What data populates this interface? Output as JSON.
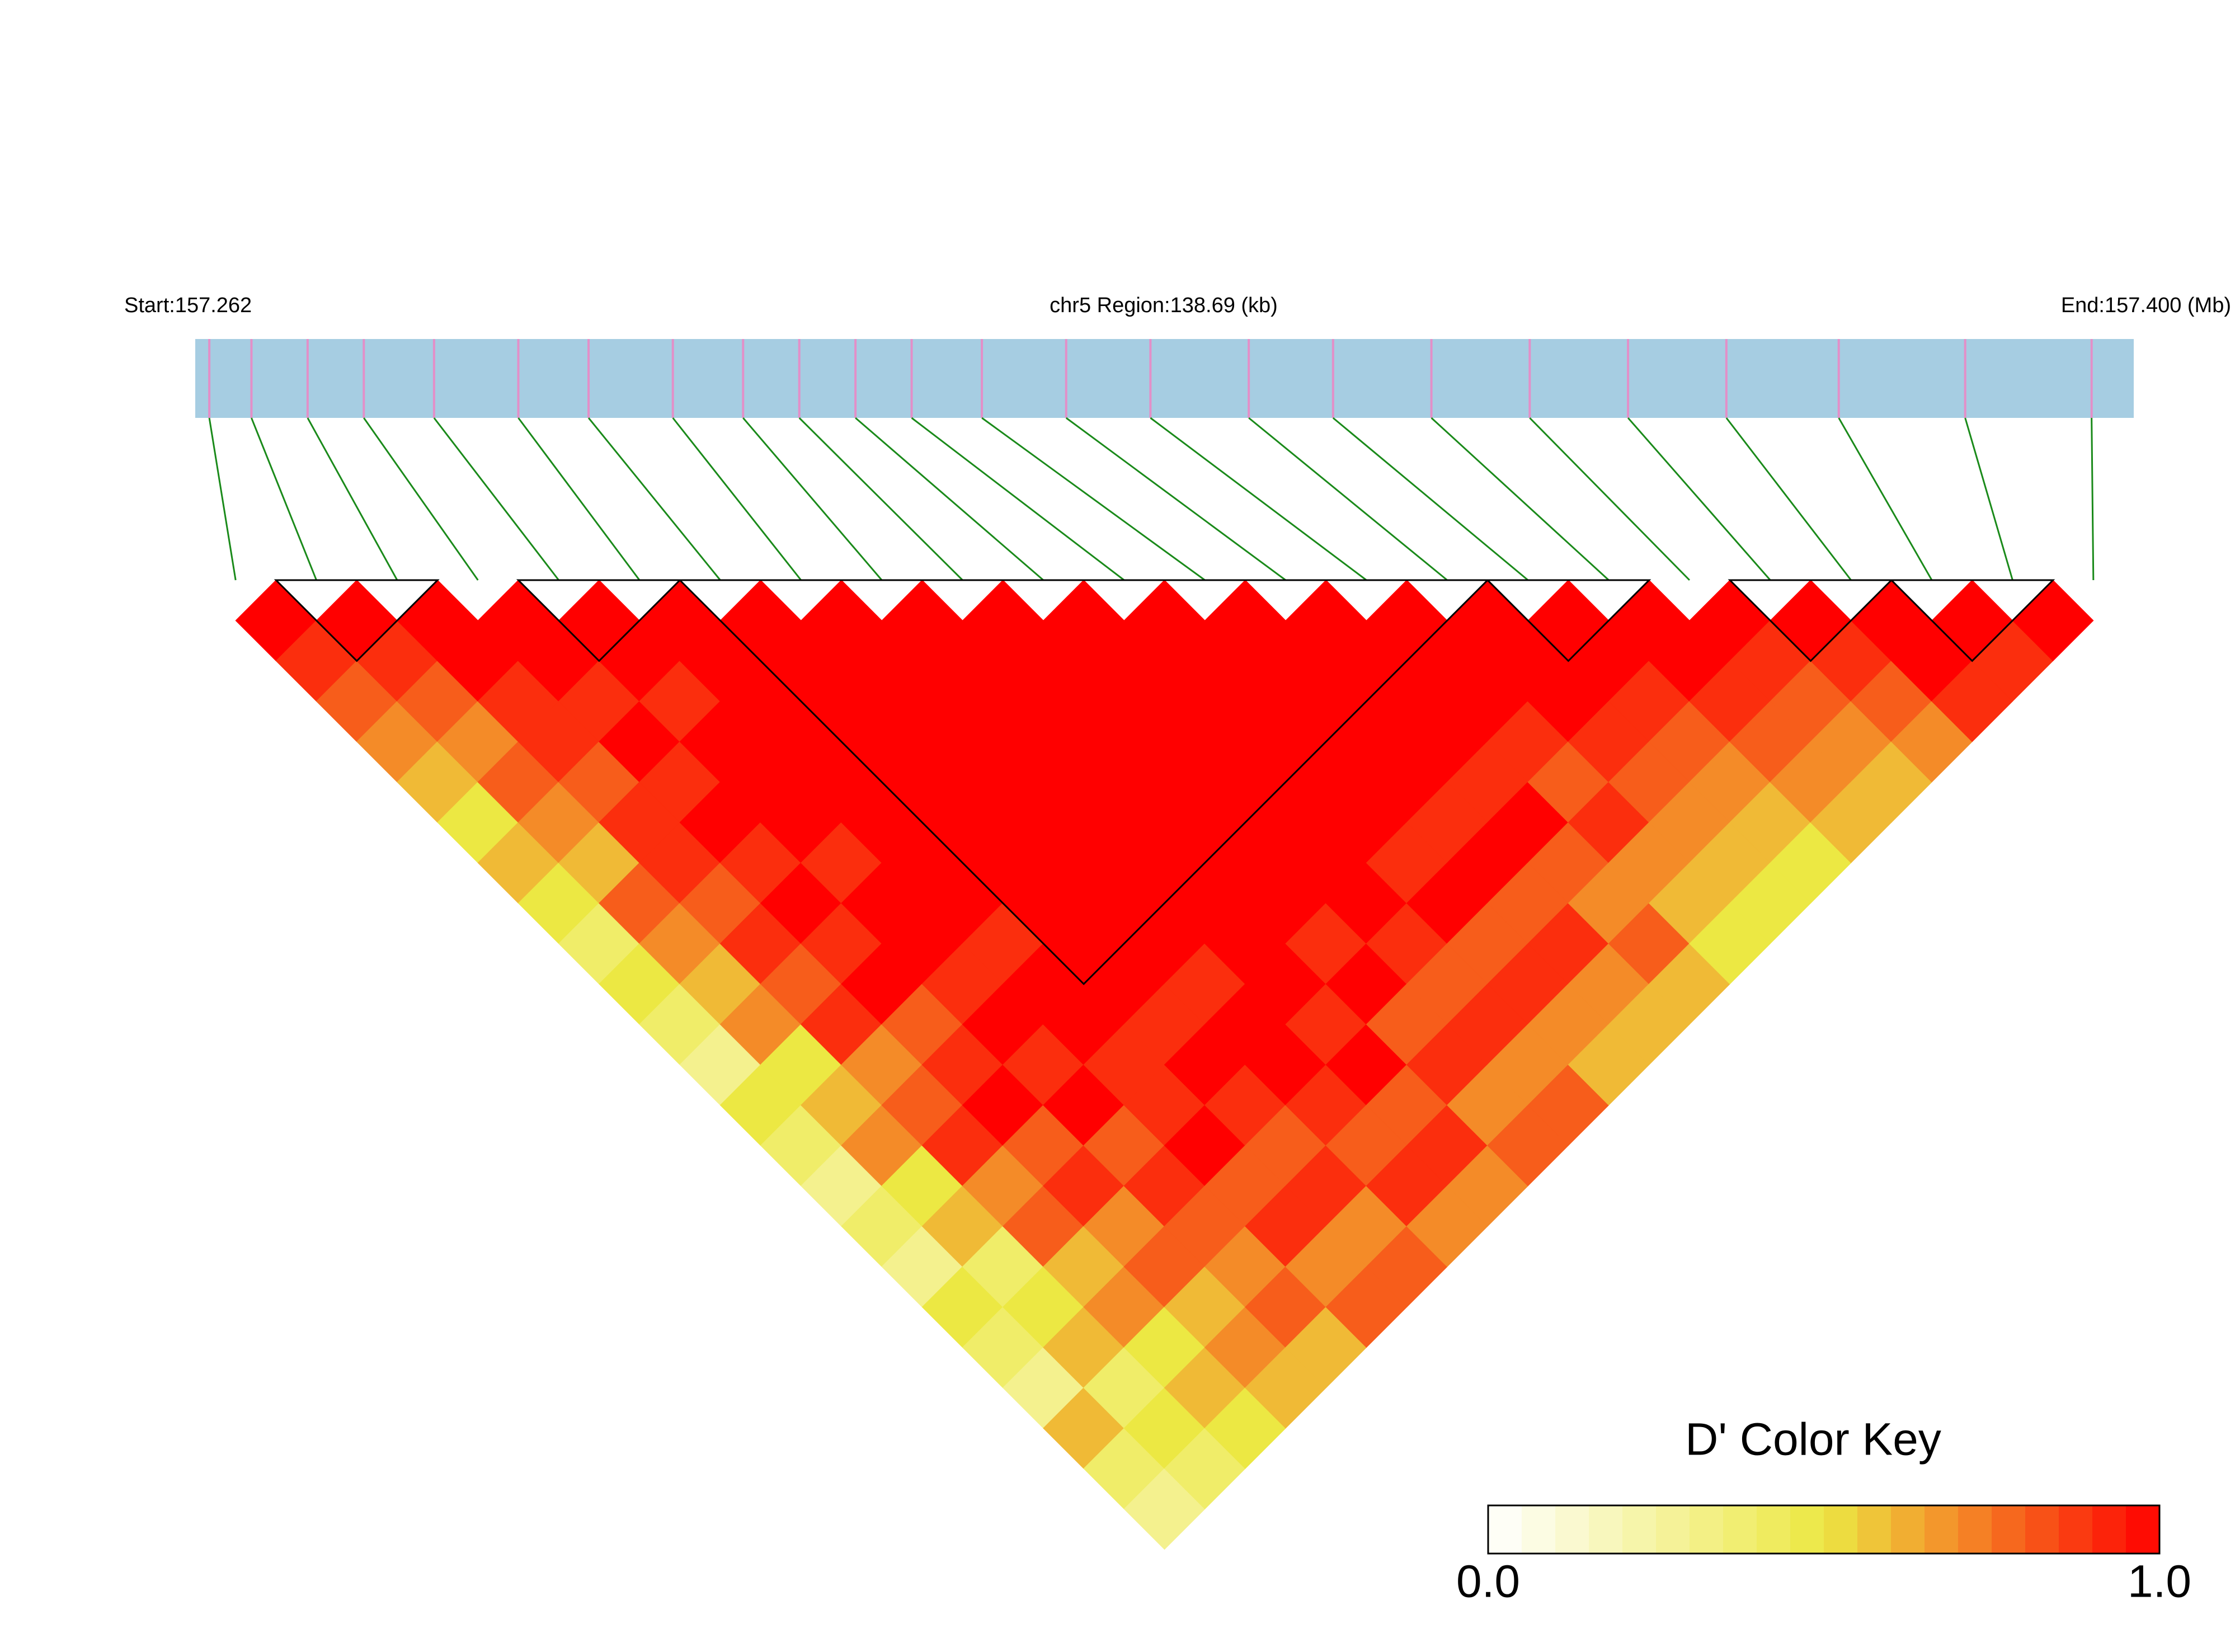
{
  "chart_data": {
    "type": "ld_heatmap",
    "start_label": "Start:157.262",
    "region_label": "chr5 Region:138.69 (kb)",
    "end_label": "End:157.400 (Mb)",
    "xlim": [
      157.262,
      157.4
    ],
    "x": [
      157.263,
      157.266,
      157.27,
      157.274,
      157.279,
      157.285,
      157.29,
      157.296,
      157.301,
      157.305,
      157.309,
      157.313,
      157.318,
      157.324,
      157.33,
      157.337,
      157.343,
      157.35,
      157.357,
      157.364,
      157.371,
      157.379,
      157.388,
      157.397
    ],
    "ld": [
      [
        1,
        0.9,
        0.8,
        0.7,
        0.6,
        0.5,
        0.6,
        0.5,
        0.4,
        0.5,
        0.4,
        0.3,
        0.5,
        0.4,
        0.3,
        0.4,
        0.3,
        0.5,
        0.4,
        0.3,
        0.6,
        0.4,
        0.3
      ],
      [
        1,
        0.9,
        0.8,
        0.7,
        0.8,
        0.7,
        0.6,
        0.8,
        0.7,
        0.6,
        0.7,
        0.5,
        0.6,
        0.7,
        0.5,
        0.6,
        0.4,
        0.5,
        0.6,
        0.4,
        0.5,
        0.4
      ],
      [
        1,
        1,
        0.9,
        0.9,
        0.8,
        0.9,
        0.9,
        0.8,
        0.9,
        0.8,
        0.9,
        0.7,
        0.8,
        0.9,
        0.7,
        0.8,
        0.6,
        0.7,
        0.5,
        0.6,
        0.5
      ],
      [
        1,
        1,
        0.9,
        1,
        0.9,
        1,
        0.9,
        1,
        0.9,
        1,
        0.8,
        0.9,
        1,
        0.8,
        0.9,
        0.7,
        0.8,
        0.6,
        0.7,
        0.6
      ],
      [
        1,
        1,
        0.9,
        1,
        1,
        1,
        0.9,
        1,
        1,
        0.9,
        1,
        0.9,
        1,
        0.8,
        0.9,
        0.8,
        0.7,
        0.8,
        0.6
      ],
      [
        1,
        1,
        1,
        1,
        1,
        1,
        1,
        1,
        0.9,
        1,
        1,
        0.9,
        0.9,
        1,
        0.8,
        0.9,
        0.7,
        0.8
      ],
      [
        1,
        1,
        1,
        1,
        1,
        1,
        1,
        1,
        1,
        1,
        0.9,
        1,
        0.9,
        0.8,
        0.9,
        0.7,
        0.8
      ],
      [
        1,
        1,
        1,
        1,
        1,
        1,
        1,
        1,
        1,
        0.9,
        1,
        1,
        0.9,
        0.8,
        0.9,
        0.7
      ],
      [
        1,
        1,
        1,
        1,
        1,
        1,
        1,
        1,
        1,
        1,
        0.9,
        1,
        0.8,
        0.9,
        0.7
      ],
      [
        1,
        1,
        1,
        1,
        1,
        1,
        1,
        1,
        0.9,
        1,
        0.8,
        0.9,
        0.7,
        0.8
      ],
      [
        1,
        1,
        1,
        1,
        1,
        1,
        1,
        1,
        0.9,
        0.8,
        0.9,
        0.7,
        0.8
      ],
      [
        1,
        1,
        1,
        1,
        1,
        1,
        0.9,
        1,
        0.8,
        0.9,
        0.7,
        0.6
      ],
      [
        1,
        1,
        1,
        1,
        1,
        0.9,
        1,
        0.8,
        0.9,
        0.7,
        0.6
      ],
      [
        1,
        1,
        1,
        1,
        0.9,
        1,
        0.8,
        0.7,
        0.8,
        0.6
      ],
      [
        1,
        1,
        1,
        0.9,
        0.8,
        0.9,
        0.7,
        0.6,
        0.5
      ],
      [
        1,
        1,
        1,
        0.9,
        0.8,
        0.7,
        0.6,
        0.5
      ],
      [
        1,
        1,
        0.9,
        0.8,
        0.7,
        0.6,
        0.5
      ],
      [
        1,
        1,
        0.9,
        0.8,
        0.7,
        0.6
      ],
      [
        1,
        0.9,
        0.8,
        0.7,
        0.6
      ],
      [
        1,
        0.9,
        0.8,
        0.7
      ],
      [
        1,
        1,
        0.9
      ],
      [
        1,
        0.9
      ],
      [
        1
      ]
    ],
    "blocks": [
      [
        1,
        2
      ],
      [
        4,
        5
      ],
      [
        6,
        15
      ],
      [
        16,
        17
      ],
      [
        19,
        20
      ],
      [
        21,
        22
      ]
    ],
    "colors": [
      "#ffffff",
      "#ece843",
      "#ff0000"
    ],
    "track_color": "#a6cde2",
    "snp_color": "#e38fc8",
    "connector_color": "#1a8a1a",
    "legend_title": "D' Color Key",
    "colorbar": {
      "range": [
        0,
        1
      ],
      "ticks": [
        {
          "value": 0,
          "label": "0.0"
        },
        {
          "value": 1,
          "label": "1.0"
        }
      ]
    }
  }
}
